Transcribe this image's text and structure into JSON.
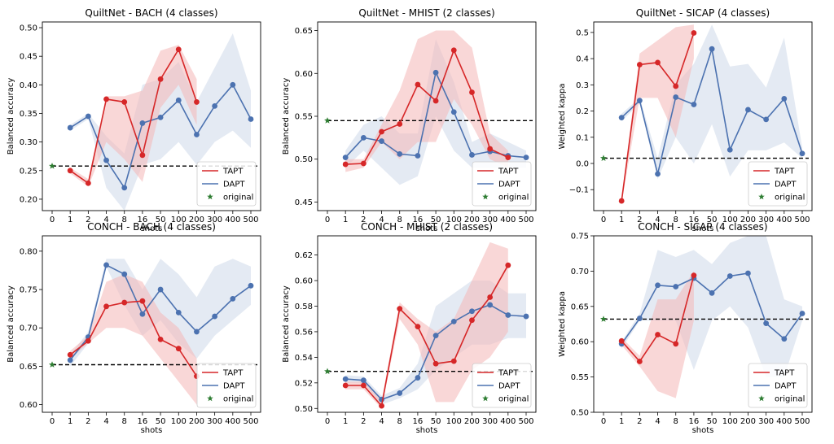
{
  "figure": {
    "colors": {
      "tapt": "#d62728",
      "dapt": "#4c72b0",
      "original": "#2e7d32",
      "tapt_band": "#f4b6b6",
      "dapt_band": "#c9d6e8"
    },
    "legend_labels": [
      "TAPT",
      "DAPT",
      "original"
    ],
    "x_categories": [
      "0",
      "1",
      "2",
      "4",
      "8",
      "16",
      "50",
      "100",
      "200",
      "300",
      "400",
      "500"
    ]
  },
  "chart_data": [
    {
      "type": "line",
      "title": "QuiltNet - BACH (4 classes)",
      "xlabel": "shots",
      "ylabel": "Balanced accuracy",
      "categories": [
        "0",
        "1",
        "2",
        "4",
        "8",
        "16",
        "50",
        "100",
        "200",
        "300",
        "400",
        "500"
      ],
      "ylim": [
        0.18,
        0.51
      ],
      "yticks": [
        0.2,
        0.25,
        0.3,
        0.35,
        0.4,
        0.45,
        0.5
      ],
      "ytick_labels": [
        "0.20",
        "0.25",
        "0.30",
        "0.35",
        "0.40",
        "0.45",
        "0.50"
      ],
      "original": 0.258,
      "legend": "lower-right",
      "series": [
        {
          "name": "TAPT",
          "x": [
            "1",
            "2",
            "4",
            "8",
            "16",
            "50",
            "100",
            "200"
          ],
          "values": [
            0.25,
            0.228,
            0.375,
            0.37,
            0.277,
            0.41,
            0.462,
            0.37
          ],
          "lower": [
            0.245,
            0.222,
            0.3,
            0.27,
            0.23,
            0.36,
            0.4,
            0.33
          ],
          "upper": [
            0.255,
            0.235,
            0.38,
            0.38,
            0.39,
            0.46,
            0.47,
            0.41
          ]
        },
        {
          "name": "DAPT",
          "x": [
            "1",
            "2",
            "4",
            "8",
            "16",
            "50",
            "100",
            "200",
            "300",
            "400",
            "500"
          ],
          "values": [
            0.325,
            0.345,
            0.268,
            0.22,
            0.333,
            0.343,
            0.373,
            0.313,
            0.363,
            0.4,
            0.34
          ],
          "lower": [
            0.32,
            0.34,
            0.22,
            0.18,
            0.26,
            0.27,
            0.3,
            0.26,
            0.3,
            0.32,
            0.29
          ],
          "upper": [
            0.33,
            0.35,
            0.31,
            0.28,
            0.4,
            0.41,
            0.44,
            0.37,
            0.43,
            0.49,
            0.39
          ]
        }
      ]
    },
    {
      "type": "line",
      "title": "QuiltNet - MHIST (2 classes)",
      "xlabel": "shots",
      "ylabel": "Balanced accuracy",
      "categories": [
        "0",
        "1",
        "2",
        "4",
        "8",
        "16",
        "50",
        "100",
        "200",
        "300",
        "400",
        "500"
      ],
      "ylim": [
        0.44,
        0.66
      ],
      "yticks": [
        0.45,
        0.5,
        0.55,
        0.6,
        0.65
      ],
      "ytick_labels": [
        "0.45",
        "0.50",
        "0.55",
        "0.60",
        "0.65"
      ],
      "original": 0.545,
      "legend": "lower-right",
      "series": [
        {
          "name": "TAPT",
          "x": [
            "1",
            "2",
            "4",
            "8",
            "16",
            "50",
            "100",
            "200",
            "300",
            "400"
          ],
          "values": [
            0.494,
            0.495,
            0.532,
            0.541,
            0.587,
            0.568,
            0.627,
            0.578,
            0.512,
            0.502
          ],
          "lower": [
            0.485,
            0.49,
            0.52,
            0.5,
            0.52,
            0.52,
            0.57,
            0.54,
            0.5,
            0.49
          ],
          "upper": [
            0.5,
            0.5,
            0.54,
            0.58,
            0.64,
            0.65,
            0.65,
            0.63,
            0.53,
            0.51
          ]
        },
        {
          "name": "DAPT",
          "x": [
            "1",
            "2",
            "4",
            "8",
            "16",
            "50",
            "100",
            "200",
            "300",
            "400",
            "500"
          ],
          "values": [
            0.502,
            0.525,
            0.521,
            0.506,
            0.504,
            0.601,
            0.555,
            0.505,
            0.509,
            0.504,
            0.502
          ],
          "lower": [
            0.49,
            0.51,
            0.49,
            0.47,
            0.48,
            0.55,
            0.51,
            0.49,
            0.49,
            0.49,
            0.49
          ],
          "upper": [
            0.51,
            0.54,
            0.55,
            0.53,
            0.53,
            0.64,
            0.59,
            0.52,
            0.53,
            0.52,
            0.51
          ]
        }
      ]
    },
    {
      "type": "line",
      "title": "QuiltNet - SICAP (4 classes)",
      "xlabel": "shots",
      "ylabel": "Weighted kappa",
      "categories": [
        "0",
        "1",
        "2",
        "4",
        "8",
        "16",
        "50",
        "100",
        "200",
        "300",
        "400",
        "500"
      ],
      "ylim": [
        -0.18,
        0.54
      ],
      "yticks": [
        -0.1,
        0.0,
        0.1,
        0.2,
        0.3,
        0.4,
        0.5
      ],
      "ytick_labels": [
        "−0.1",
        "0.0",
        "0.1",
        "0.2",
        "0.3",
        "0.4",
        "0.5"
      ],
      "original": 0.02,
      "legend": "lower-right",
      "series": [
        {
          "name": "TAPT",
          "x": [
            "1",
            "2",
            "4",
            "8",
            "16"
          ],
          "values": [
            -0.143,
            0.377,
            0.385,
            0.295,
            0.498
          ],
          "lower": [
            -0.15,
            0.25,
            0.25,
            0.1,
            0.4
          ],
          "upper": [
            -0.13,
            0.42,
            0.47,
            0.52,
            0.53
          ]
        },
        {
          "name": "DAPT",
          "x": [
            "1",
            "2",
            "4",
            "8",
            "16",
            "50",
            "100",
            "200",
            "300",
            "400",
            "500"
          ],
          "values": [
            0.175,
            0.24,
            -0.04,
            0.253,
            0.225,
            0.437,
            0.052,
            0.205,
            0.168,
            0.247,
            0.038
          ],
          "lower": [
            0.16,
            0.23,
            -0.06,
            0.1,
            0.0,
            0.15,
            -0.05,
            0.05,
            0.05,
            0.08,
            0.02
          ],
          "upper": [
            0.19,
            0.25,
            0.02,
            0.3,
            0.38,
            0.53,
            0.37,
            0.38,
            0.29,
            0.48,
            0.06
          ]
        }
      ]
    },
    {
      "type": "line",
      "title": "CONCH - BACH (4 classes)",
      "xlabel": "shots",
      "ylabel": "Balanced accuracy",
      "categories": [
        "0",
        "1",
        "2",
        "4",
        "8",
        "16",
        "50",
        "100",
        "200",
        "300",
        "400",
        "500"
      ],
      "ylim": [
        0.59,
        0.82
      ],
      "yticks": [
        0.6,
        0.65,
        0.7,
        0.75,
        0.8
      ],
      "ytick_labels": [
        "0.60",
        "0.65",
        "0.70",
        "0.75",
        "0.80"
      ],
      "original": 0.652,
      "legend": "lower-right",
      "series": [
        {
          "name": "TAPT",
          "x": [
            "1",
            "2",
            "4",
            "8",
            "16",
            "50",
            "100",
            "200"
          ],
          "values": [
            0.665,
            0.683,
            0.728,
            0.733,
            0.735,
            0.685,
            0.673,
            0.637
          ],
          "lower": [
            0.66,
            0.68,
            0.7,
            0.7,
            0.69,
            0.66,
            0.63,
            0.6
          ],
          "upper": [
            0.67,
            0.69,
            0.76,
            0.77,
            0.76,
            0.72,
            0.7,
            0.66
          ]
        },
        {
          "name": "DAPT",
          "x": [
            "1",
            "2",
            "4",
            "8",
            "16",
            "50",
            "100",
            "200",
            "300",
            "400",
            "500"
          ],
          "values": [
            0.658,
            0.688,
            0.782,
            0.77,
            0.718,
            0.75,
            0.72,
            0.695,
            0.715,
            0.738,
            0.755
          ],
          "lower": [
            0.65,
            0.68,
            0.78,
            0.73,
            0.69,
            0.71,
            0.68,
            0.66,
            0.69,
            0.71,
            0.73
          ],
          "upper": [
            0.665,
            0.695,
            0.79,
            0.79,
            0.75,
            0.79,
            0.77,
            0.74,
            0.78,
            0.79,
            0.78
          ]
        }
      ]
    },
    {
      "type": "line",
      "title": "CONCH - MHIST (2 classes)",
      "xlabel": "shots",
      "ylabel": "Balanced accuracy",
      "categories": [
        "0",
        "1",
        "2",
        "4",
        "8",
        "16",
        "50",
        "100",
        "200",
        "300",
        "400",
        "500"
      ],
      "ylim": [
        0.497,
        0.635
      ],
      "yticks": [
        0.5,
        0.52,
        0.54,
        0.56,
        0.58,
        0.6,
        0.62
      ],
      "ytick_labels": [
        "0.50",
        "0.52",
        "0.54",
        "0.56",
        "0.58",
        "0.60",
        "0.62"
      ],
      "original": 0.529,
      "legend": "lower-right",
      "series": [
        {
          "name": "TAPT",
          "x": [
            "1",
            "2",
            "4",
            "8",
            "16",
            "50",
            "100",
            "200",
            "300",
            "400"
          ],
          "values": [
            0.518,
            0.518,
            0.502,
            0.578,
            0.564,
            0.535,
            0.537,
            0.569,
            0.587,
            0.612
          ],
          "lower": [
            0.515,
            0.515,
            0.5,
            0.57,
            0.55,
            0.505,
            0.505,
            0.53,
            0.54,
            0.56
          ],
          "upper": [
            0.521,
            0.521,
            0.506,
            0.583,
            0.57,
            0.56,
            0.57,
            0.6,
            0.63,
            0.625
          ]
        },
        {
          "name": "DAPT",
          "x": [
            "1",
            "2",
            "4",
            "8",
            "16",
            "50",
            "100",
            "200",
            "300",
            "400",
            "500"
          ],
          "values": [
            0.523,
            0.522,
            0.507,
            0.512,
            0.524,
            0.557,
            0.568,
            0.576,
            0.581,
            0.573,
            0.572
          ],
          "lower": [
            0.52,
            0.52,
            0.503,
            0.508,
            0.515,
            0.53,
            0.54,
            0.55,
            0.55,
            0.555,
            0.555
          ],
          "upper": [
            0.526,
            0.525,
            0.51,
            0.516,
            0.535,
            0.58,
            0.59,
            0.6,
            0.6,
            0.59,
            0.59
          ]
        }
      ]
    },
    {
      "type": "line",
      "title": "CONCH - SICAP (4 classes)",
      "xlabel": "shots",
      "ylabel": "Weighted kappa",
      "categories": [
        "0",
        "1",
        "2",
        "4",
        "8",
        "16",
        "50",
        "100",
        "200",
        "300",
        "400",
        "500"
      ],
      "ylim": [
        0.5,
        0.75
      ],
      "yticks": [
        0.5,
        0.55,
        0.6,
        0.65,
        0.7,
        0.75
      ],
      "ytick_labels": [
        "0.50",
        "0.55",
        "0.60",
        "0.65",
        "0.70",
        "0.75"
      ],
      "original": 0.632,
      "legend": "lower-right",
      "series": [
        {
          "name": "TAPT",
          "x": [
            "1",
            "2",
            "4",
            "8",
            "16"
          ],
          "values": [
            0.601,
            0.572,
            0.61,
            0.597,
            0.694
          ],
          "lower": [
            0.595,
            0.565,
            0.53,
            0.52,
            0.63
          ],
          "upper": [
            0.606,
            0.58,
            0.66,
            0.66,
            0.7
          ]
        },
        {
          "name": "DAPT",
          "x": [
            "1",
            "2",
            "4",
            "8",
            "16",
            "50",
            "100",
            "200",
            "300",
            "400",
            "500"
          ],
          "values": [
            0.597,
            0.633,
            0.68,
            0.678,
            0.69,
            0.669,
            0.693,
            0.697,
            0.626,
            0.604,
            0.64
          ],
          "lower": [
            0.59,
            0.63,
            0.63,
            0.63,
            0.56,
            0.63,
            0.65,
            0.62,
            0.55,
            0.55,
            0.63
          ],
          "upper": [
            0.6,
            0.64,
            0.73,
            0.72,
            0.73,
            0.71,
            0.74,
            0.75,
            0.75,
            0.66,
            0.65
          ]
        }
      ]
    }
  ]
}
